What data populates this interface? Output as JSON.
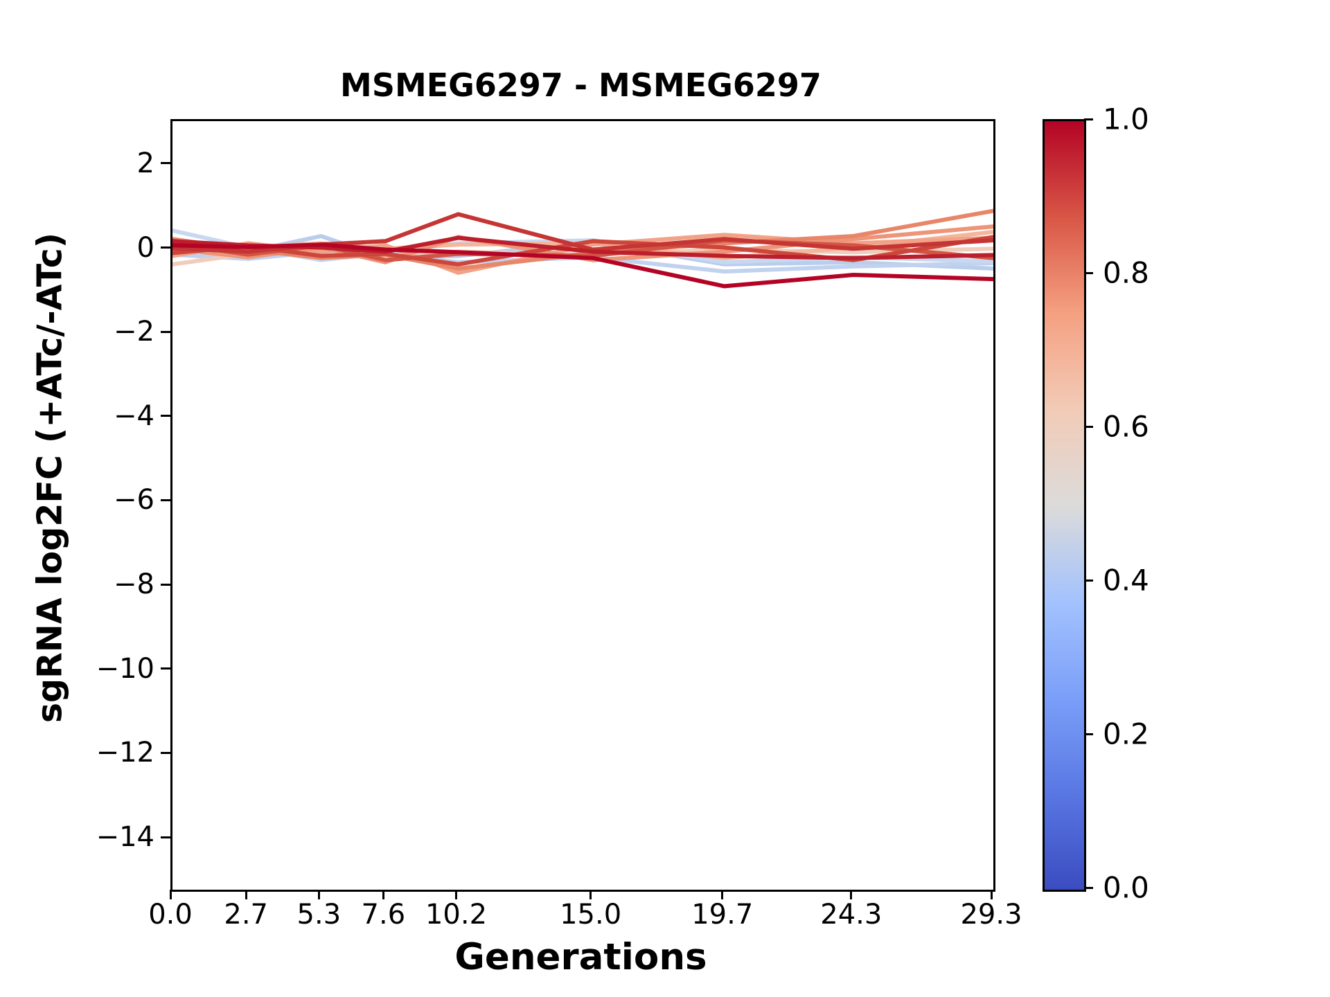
{
  "title": "MSMEG6297 - MSMEG6297",
  "chart_data": {
    "type": "line",
    "title": "MSMEG6297 - MSMEG6297",
    "xlabel": "Generations",
    "ylabel": "sgRNA log2FC (+ATc/-ATc)",
    "x": [
      0.0,
      2.7,
      5.3,
      7.6,
      10.2,
      15.0,
      19.7,
      24.3,
      29.3
    ],
    "xlim": [
      0.0,
      29.3
    ],
    "ylim": [
      -15.2,
      3.05
    ],
    "grid": false,
    "legend": "none (colorbar encodes line color value 0-1, coolwarm colormap)",
    "xticks": [
      {
        "v": 0.0,
        "label": "0.0"
      },
      {
        "v": 2.7,
        "label": "2.7"
      },
      {
        "v": 5.3,
        "label": "5.3"
      },
      {
        "v": 7.6,
        "label": "7.6"
      },
      {
        "v": 10.2,
        "label": "10.2"
      },
      {
        "v": 15.0,
        "label": "15.0"
      },
      {
        "v": 19.7,
        "label": "19.7"
      },
      {
        "v": 24.3,
        "label": "24.3"
      },
      {
        "v": 29.3,
        "label": "29.3"
      }
    ],
    "yticks": [
      {
        "v": 2,
        "label": "2"
      },
      {
        "v": 0,
        "label": "0"
      },
      {
        "v": -2,
        "label": "−2"
      },
      {
        "v": -4,
        "label": "−4"
      },
      {
        "v": -6,
        "label": "−6"
      },
      {
        "v": -8,
        "label": "−8"
      },
      {
        "v": -10,
        "label": "−10"
      },
      {
        "v": -12,
        "label": "−12"
      },
      {
        "v": -14,
        "label": "−14"
      }
    ],
    "series": [
      {
        "name": "line-01",
        "colormap_value": 0.4,
        "color": "#b9cdec",
        "values": [
          0.25,
          -0.05,
          0.32,
          -0.2,
          -0.15,
          0.18,
          -0.35,
          -0.3,
          -0.45
        ]
      },
      {
        "name": "line-02",
        "colormap_value": 0.42,
        "color": "#c1d2ef",
        "values": [
          -0.12,
          -0.22,
          -0.05,
          -0.12,
          -0.3,
          -0.18,
          -0.52,
          -0.4,
          -0.32
        ]
      },
      {
        "name": "line-03",
        "colormap_value": 0.44,
        "color": "#c8d8f1",
        "values": [
          0.45,
          0.05,
          -0.25,
          -0.08,
          0.15,
          0.22,
          -0.3,
          -0.18,
          -0.28
        ]
      },
      {
        "name": "line-04",
        "colormap_value": 0.57,
        "color": "#f0cdbb",
        "values": [
          -0.35,
          -0.1,
          0.02,
          -0.15,
          -0.05,
          -0.12,
          0.0,
          -0.06,
          0.02
        ]
      },
      {
        "name": "line-05",
        "colormap_value": 0.65,
        "color": "#f3b79c",
        "values": [
          -0.05,
          0.06,
          0.15,
          0.02,
          0.12,
          0.15,
          -0.2,
          0.05,
          0.42
        ]
      },
      {
        "name": "line-06",
        "colormap_value": 0.7,
        "color": "#f2a287",
        "values": [
          -0.15,
          0.15,
          -0.05,
          0.1,
          -0.55,
          0.12,
          0.35,
          0.15,
          0.28
        ]
      },
      {
        "name": "line-07",
        "colormap_value": 0.74,
        "color": "#ee9478",
        "values": [
          0.02,
          -0.18,
          0.05,
          -0.3,
          0.3,
          -0.25,
          -0.05,
          0.25,
          0.55
        ]
      },
      {
        "name": "line-08",
        "colormap_value": 0.78,
        "color": "#e8866a",
        "values": [
          0.25,
          0.0,
          -0.2,
          -0.12,
          -0.45,
          -0.08,
          0.15,
          0.32,
          0.92
        ]
      },
      {
        "name": "line-09",
        "colormap_value": 0.88,
        "color": "#d25544",
        "values": [
          0.15,
          -0.12,
          0.1,
          -0.25,
          -0.1,
          -0.15,
          0.22,
          0.1,
          -0.2
        ]
      },
      {
        "name": "line-10",
        "colormap_value": 0.9,
        "color": "#cc463c",
        "values": [
          -0.08,
          0.08,
          -0.15,
          -0.1,
          -0.35,
          0.2,
          0.05,
          -0.25,
          0.3
        ]
      },
      {
        "name": "line-11",
        "colormap_value": 0.93,
        "color": "#c53534",
        "values": [
          0.03,
          -0.05,
          0.12,
          0.2,
          0.84,
          0.0,
          0.25,
          0.02,
          0.22
        ]
      },
      {
        "name": "line-12",
        "colormap_value": 0.97,
        "color": "#bc1f2c",
        "values": [
          0.2,
          0.1,
          0.05,
          -0.05,
          0.28,
          -0.05,
          -0.15,
          -0.2,
          -0.13
        ]
      },
      {
        "name": "line-13",
        "colormap_value": 1.0,
        "color": "#b40426",
        "values": [
          0.1,
          0.06,
          0.12,
          0.0,
          -0.06,
          -0.2,
          -0.87,
          -0.6,
          -0.7
        ]
      }
    ],
    "colorbar": {
      "cmap": "coolwarm",
      "vmin": 0.0,
      "vmax": 1.0,
      "ticks": [
        {
          "v": 1.0,
          "label": "1.0"
        },
        {
          "v": 0.8,
          "label": "0.8"
        },
        {
          "v": 0.6,
          "label": "0.6"
        },
        {
          "v": 0.4,
          "label": "0.4"
        },
        {
          "v": 0.2,
          "label": "0.2"
        },
        {
          "v": 0.0,
          "label": "0.0"
        }
      ],
      "gradient_stops": [
        "#3b4cc0 0%",
        "#5977e3 12.5%",
        "#7b9ff9 25%",
        "#a3c2fe 37.5%",
        "#dcdbda 50%",
        "#f2cbb7 62.5%",
        "#f5a081 75%",
        "#d85646 87.5%",
        "#b40426 100%"
      ]
    }
  }
}
